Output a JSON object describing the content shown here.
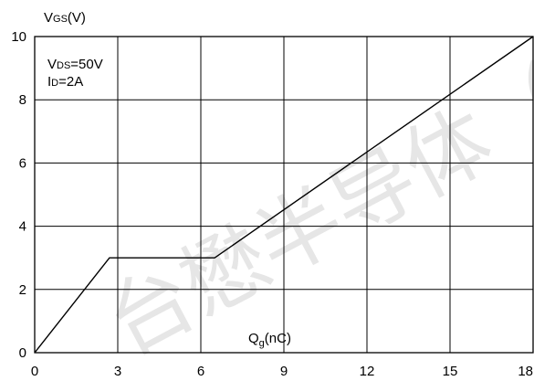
{
  "chart_data": {
    "type": "line",
    "title": "",
    "ylabel": {
      "main": "V",
      "sub": "GS",
      "unit": "(V)"
    },
    "xlabel": {
      "main": "Q",
      "sub": "g",
      "unit": "(nC)"
    },
    "annotations": [
      {
        "main": "V",
        "sub": "DS",
        "rest": "=50V"
      },
      {
        "main": "I",
        "sub": "D",
        "rest": "=2A"
      }
    ],
    "xlim": [
      0,
      18
    ],
    "ylim": [
      0,
      10
    ],
    "x_ticks": [
      0,
      3,
      6,
      9,
      12,
      15,
      18
    ],
    "y_ticks": [
      0,
      2,
      4,
      6,
      8,
      10
    ],
    "grid": true,
    "series": [
      {
        "x": [
          0,
          2.7,
          6.5,
          18
        ],
        "y": [
          0,
          3,
          3,
          10
        ]
      }
    ],
    "watermark": "台懋半导体（"
  }
}
